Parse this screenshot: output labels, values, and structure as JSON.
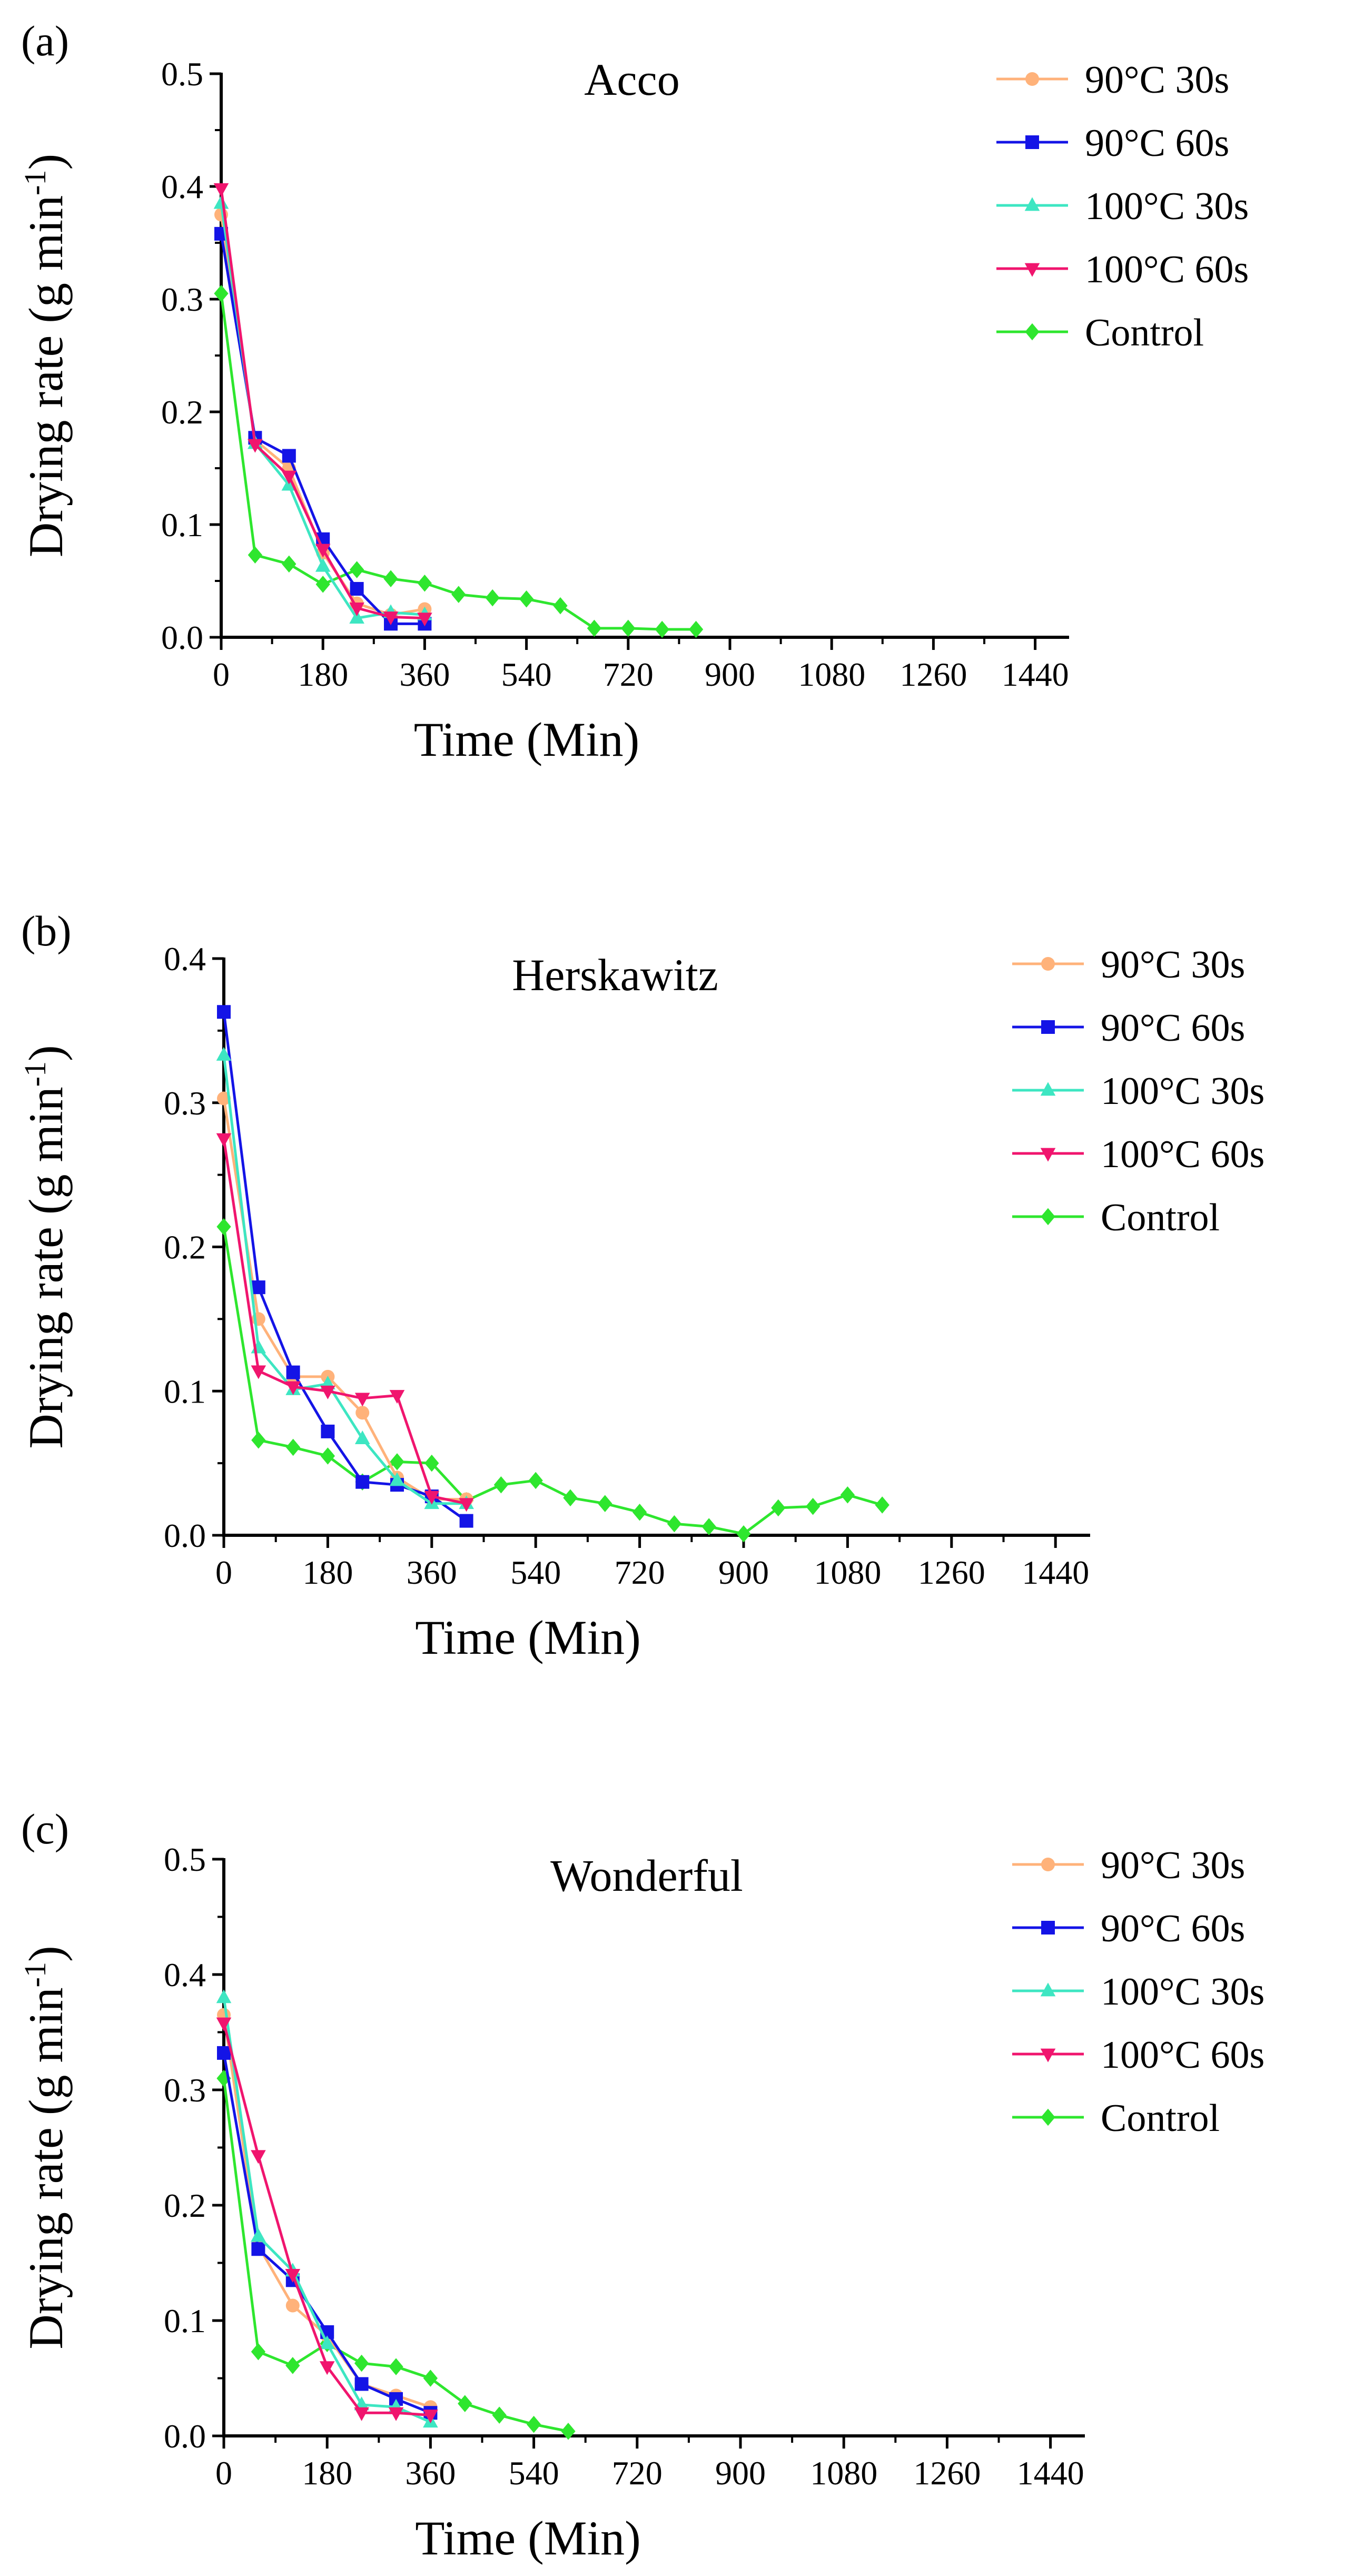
{
  "figure": {
    "colors": {
      "s30_90": "#FFB27A",
      "s60_90": "#1414E6",
      "s30_100": "#3DE6C2",
      "s60_100": "#F0156E",
      "control": "#2EE62E",
      "axis": "#000000"
    }
  },
  "chart_data": [
    {
      "type": "line",
      "panel": "(a)",
      "title": "Acco",
      "xlabel": "Time (Min)",
      "ylabel_main": "Drying rate (g min",
      "ylabel_sup": "-1",
      "ylabel_close": ")",
      "xlim": [
        0,
        1500
      ],
      "ylim": [
        0,
        0.5
      ],
      "xticks": [
        0,
        180,
        360,
        540,
        720,
        900,
        1080,
        1260,
        1440
      ],
      "yticks": [
        "0.0",
        "0.1",
        "0.2",
        "0.3",
        "0.4",
        "0.5"
      ],
      "series": [
        {
          "name": "90°C 30s",
          "marker": "circle",
          "color": "#FFB27A",
          "x": [
            0,
            60,
            120,
            180,
            240,
            300,
            360
          ],
          "y": [
            0.375,
            0.175,
            0.15,
            0.075,
            0.03,
            0.02,
            0.025
          ]
        },
        {
          "name": "90°C 60s",
          "marker": "square",
          "color": "#1414E6",
          "x": [
            0,
            60,
            120,
            180,
            240,
            300,
            360
          ],
          "y": [
            0.358,
            0.177,
            0.161,
            0.087,
            0.043,
            0.012,
            0.012
          ]
        },
        {
          "name": "100°C 30s",
          "marker": "triangle-up",
          "color": "#3DE6C2",
          "x": [
            0,
            60,
            120,
            180,
            240,
            300,
            360
          ],
          "y": [
            0.385,
            0.172,
            0.135,
            0.063,
            0.017,
            0.022,
            0.02
          ]
        },
        {
          "name": "100°C 60s",
          "marker": "triangle-down",
          "color": "#F0156E",
          "x": [
            0,
            60,
            120,
            180,
            240,
            300,
            360
          ],
          "y": [
            0.398,
            0.171,
            0.143,
            0.078,
            0.026,
            0.018,
            0.017
          ]
        },
        {
          "name": "Control",
          "marker": "diamond",
          "color": "#2EE62E",
          "x": [
            0,
            60,
            120,
            180,
            240,
            300,
            360,
            420,
            480,
            540,
            600,
            660,
            720,
            780,
            840
          ],
          "y": [
            0.305,
            0.073,
            0.065,
            0.047,
            0.06,
            0.052,
            0.048,
            0.038,
            0.035,
            0.034,
            0.028,
            0.008,
            0.008,
            0.007,
            0.007
          ]
        }
      ]
    },
    {
      "type": "line",
      "panel": "(b)",
      "title": "Herskawitz",
      "xlabel": "Time (Min)",
      "ylabel_main": "Drying rate (g min",
      "ylabel_sup": "-1",
      "ylabel_close": ")",
      "xlim": [
        0,
        1500
      ],
      "ylim": [
        0,
        0.4
      ],
      "xticks": [
        0,
        180,
        360,
        540,
        720,
        900,
        1080,
        1260,
        1440
      ],
      "yticks": [
        "0.0",
        "0.1",
        "0.2",
        "0.3",
        "0.4"
      ],
      "series": [
        {
          "name": "90°C 30s",
          "marker": "circle",
          "color": "#FFB27A",
          "x": [
            0,
            60,
            120,
            180,
            240,
            300,
            360,
            420
          ],
          "y": [
            0.303,
            0.15,
            0.11,
            0.11,
            0.085,
            0.04,
            0.025,
            0.025
          ]
        },
        {
          "name": "90°C 60s",
          "marker": "square",
          "color": "#1414E6",
          "x": [
            0,
            60,
            120,
            180,
            240,
            300,
            360,
            420
          ],
          "y": [
            0.363,
            0.172,
            0.113,
            0.072,
            0.037,
            0.035,
            0.027,
            0.01
          ]
        },
        {
          "name": "100°C 30s",
          "marker": "triangle-up",
          "color": "#3DE6C2",
          "x": [
            0,
            60,
            120,
            180,
            240,
            300,
            360,
            420
          ],
          "y": [
            0.333,
            0.13,
            0.101,
            0.105,
            0.067,
            0.038,
            0.022,
            0.022
          ]
        },
        {
          "name": "100°C 60s",
          "marker": "triangle-down",
          "color": "#F0156E",
          "x": [
            0,
            60,
            120,
            180,
            240,
            300,
            360,
            420
          ],
          "y": [
            0.275,
            0.114,
            0.103,
            0.1,
            0.095,
            0.097,
            0.027,
            0.022
          ]
        },
        {
          "name": "Control",
          "marker": "diamond",
          "color": "#2EE62E",
          "x": [
            0,
            60,
            120,
            180,
            240,
            300,
            360,
            420,
            480,
            540,
            600,
            660,
            720,
            780,
            840,
            900,
            960,
            1020,
            1080,
            1140
          ],
          "y": [
            0.214,
            0.066,
            0.061,
            0.055,
            0.037,
            0.051,
            0.05,
            0.024,
            0.035,
            0.038,
            0.026,
            0.022,
            0.016,
            0.008,
            0.006,
            0.001,
            0.019,
            0.02,
            0.028,
            0.021
          ]
        }
      ]
    },
    {
      "type": "line",
      "panel": "(c)",
      "title": "Wonderful",
      "xlabel": "Time (Min)",
      "ylabel_main": "Drying rate (g min",
      "ylabel_sup": "-1",
      "ylabel_close": ")",
      "xlim": [
        0,
        1500
      ],
      "ylim": [
        0,
        0.5
      ],
      "xticks": [
        0,
        180,
        360,
        540,
        720,
        900,
        1080,
        1260,
        1440
      ],
      "yticks": [
        "0.0",
        "0.1",
        "0.2",
        "0.3",
        "0.4",
        "0.5"
      ],
      "series": [
        {
          "name": "90°C 30s",
          "marker": "circle",
          "color": "#FFB27A",
          "x": [
            0,
            60,
            120,
            180,
            240,
            300,
            360
          ],
          "y": [
            0.365,
            0.165,
            0.113,
            0.087,
            0.045,
            0.035,
            0.025
          ]
        },
        {
          "name": "90°C 60s",
          "marker": "square",
          "color": "#1414E6",
          "x": [
            0,
            60,
            120,
            180,
            240,
            300,
            360
          ],
          "y": [
            0.332,
            0.162,
            0.135,
            0.09,
            0.045,
            0.032,
            0.02
          ]
        },
        {
          "name": "100°C 30s",
          "marker": "triangle-up",
          "color": "#3DE6C2",
          "x": [
            0,
            60,
            120,
            180,
            240,
            300,
            360
          ],
          "y": [
            0.38,
            0.173,
            0.143,
            0.08,
            0.027,
            0.025,
            0.012
          ]
        },
        {
          "name": "100°C 60s",
          "marker": "triangle-down",
          "color": "#F0156E",
          "x": [
            0,
            60,
            120,
            180,
            240,
            300,
            360
          ],
          "y": [
            0.358,
            0.243,
            0.14,
            0.06,
            0.02,
            0.02,
            0.018
          ]
        },
        {
          "name": "Control",
          "marker": "diamond",
          "color": "#2EE62E",
          "x": [
            0,
            60,
            120,
            180,
            240,
            300,
            360,
            420,
            480,
            540,
            600
          ],
          "y": [
            0.31,
            0.073,
            0.061,
            0.08,
            0.063,
            0.06,
            0.05,
            0.028,
            0.018,
            0.01,
            0.004
          ]
        }
      ]
    }
  ]
}
